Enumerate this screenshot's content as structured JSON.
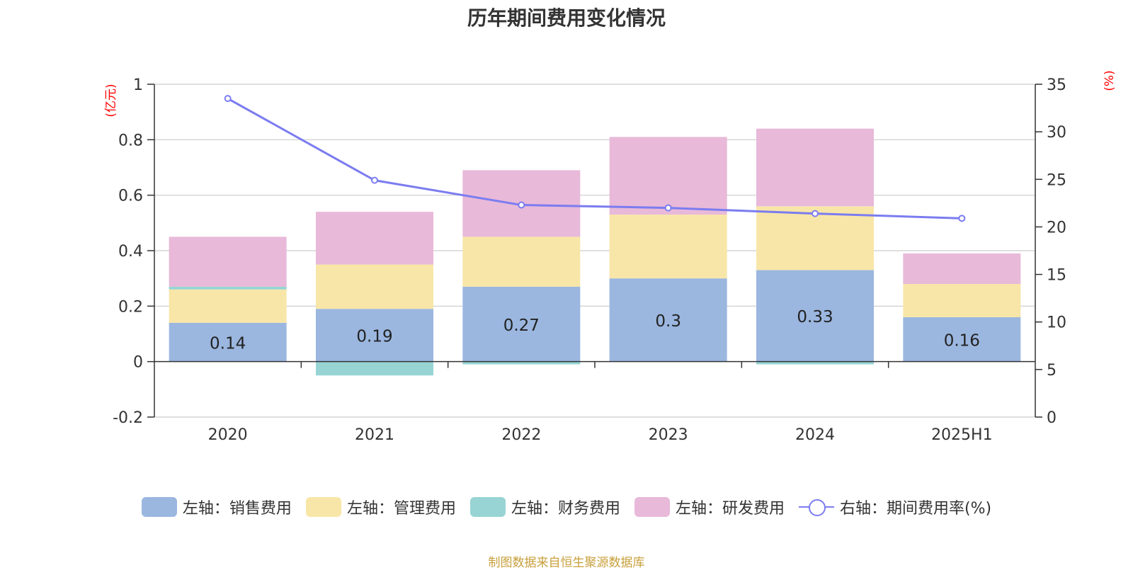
{
  "title": "历年期间费用变化情况",
  "source": "制图数据来自恒生聚源数据库",
  "colors": {
    "sales": "#9bb7e0",
    "admin": "#f8e6a8",
    "finance": "#98d4d4",
    "rd": "#e8b9d9",
    "line": "#7b7cf0",
    "axis_unit": "#ff0000"
  },
  "chart_data": {
    "type": "bar",
    "stacked": true,
    "categories": [
      "2020",
      "2021",
      "2022",
      "2023",
      "2024",
      "2025H1"
    ],
    "series": [
      {
        "name": "左轴：销售费用",
        "axis": "left",
        "values": [
          0.14,
          0.19,
          0.27,
          0.3,
          0.33,
          0.16
        ],
        "labels": [
          "0.14",
          "0.19",
          "0.27",
          "0.3",
          "0.33",
          "0.16"
        ]
      },
      {
        "name": "左轴：管理费用",
        "axis": "left",
        "values": [
          0.12,
          0.16,
          0.18,
          0.23,
          0.23,
          0.12
        ]
      },
      {
        "name": "左轴：财务费用",
        "axis": "left",
        "values": [
          0.01,
          -0.05,
          -0.01,
          0.0,
          -0.01,
          0.0
        ]
      },
      {
        "name": "左轴：研发费用",
        "axis": "left",
        "values": [
          0.18,
          0.19,
          0.24,
          0.28,
          0.28,
          0.11
        ]
      },
      {
        "name": "右轴：期间费用率(%)",
        "axis": "right",
        "type": "line",
        "values": [
          33.5,
          24.9,
          22.3,
          22.0,
          21.4,
          20.9
        ]
      }
    ],
    "left_axis": {
      "unit": "(亿元)",
      "min": -0.2,
      "max": 1,
      "ticks": [
        "-0.2",
        "0",
        "0.2",
        "0.4",
        "0.6",
        "0.8",
        "1"
      ]
    },
    "right_axis": {
      "unit": "(%)",
      "min": 0,
      "max": 35,
      "ticks": [
        "0",
        "5",
        "10",
        "15",
        "20",
        "25",
        "30",
        "35"
      ]
    },
    "grid": true,
    "legend_position": "bottom"
  }
}
